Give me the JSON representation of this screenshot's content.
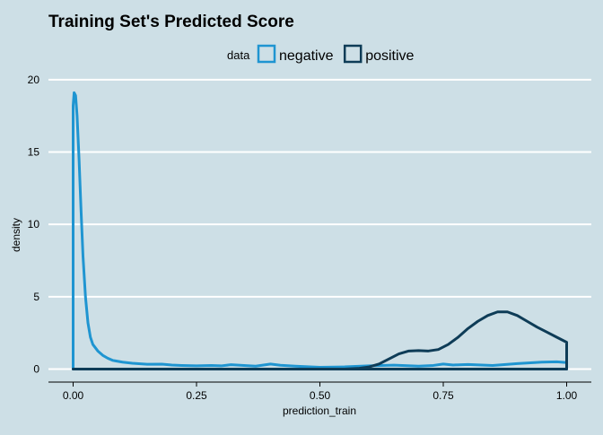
{
  "chart_data": {
    "type": "area",
    "title": "Training Set's Predicted Score",
    "xlabel": "prediction_train",
    "ylabel": "density",
    "xlim": [
      -0.05,
      1.05
    ],
    "ylim": [
      -0.9,
      20.3
    ],
    "x_ticks": [
      0,
      0.25,
      0.5,
      0.75,
      1.0
    ],
    "x_tick_labels": [
      "0.00",
      "0.25",
      "0.50",
      "0.75",
      "1.00"
    ],
    "y_ticks": [
      0,
      5,
      10,
      15,
      20
    ],
    "y_tick_labels": [
      "0",
      "5",
      "10",
      "15",
      "20"
    ],
    "grid": "horizontal",
    "legend": {
      "title": "data",
      "position": "top"
    },
    "series": [
      {
        "name": "negative",
        "color": "#1f95d1",
        "x": [
          0,
          0.002,
          0.005,
          0.008,
          0.012,
          0.016,
          0.02,
          0.025,
          0.03,
          0.035,
          0.04,
          0.05,
          0.06,
          0.07,
          0.08,
          0.1,
          0.12,
          0.15,
          0.18,
          0.2,
          0.22,
          0.25,
          0.28,
          0.3,
          0.32,
          0.35,
          0.37,
          0.4,
          0.42,
          0.45,
          0.48,
          0.5,
          0.55,
          0.6,
          0.65,
          0.7,
          0.73,
          0.75,
          0.77,
          0.8,
          0.85,
          0.9,
          0.95,
          0.98,
          1.0
        ],
        "y": [
          18.2,
          19.1,
          18.9,
          17.5,
          14.5,
          11.0,
          7.8,
          5.0,
          3.2,
          2.2,
          1.7,
          1.25,
          0.95,
          0.75,
          0.6,
          0.48,
          0.4,
          0.33,
          0.34,
          0.28,
          0.25,
          0.22,
          0.25,
          0.22,
          0.3,
          0.24,
          0.2,
          0.35,
          0.26,
          0.2,
          0.15,
          0.12,
          0.15,
          0.22,
          0.27,
          0.2,
          0.25,
          0.35,
          0.28,
          0.32,
          0.25,
          0.38,
          0.48,
          0.5,
          0.45
        ]
      },
      {
        "name": "positive",
        "color": "#0e3c57",
        "x": [
          0,
          0.55,
          0.58,
          0.6,
          0.62,
          0.64,
          0.66,
          0.68,
          0.7,
          0.72,
          0.74,
          0.76,
          0.78,
          0.8,
          0.82,
          0.84,
          0.86,
          0.88,
          0.9,
          0.92,
          0.94,
          0.96,
          0.98,
          1.0
        ],
        "y": [
          0,
          0,
          0.05,
          0.15,
          0.35,
          0.7,
          1.05,
          1.25,
          1.28,
          1.25,
          1.35,
          1.7,
          2.2,
          2.8,
          3.3,
          3.7,
          3.95,
          3.95,
          3.7,
          3.3,
          2.9,
          2.55,
          2.2,
          1.85
        ]
      }
    ]
  }
}
